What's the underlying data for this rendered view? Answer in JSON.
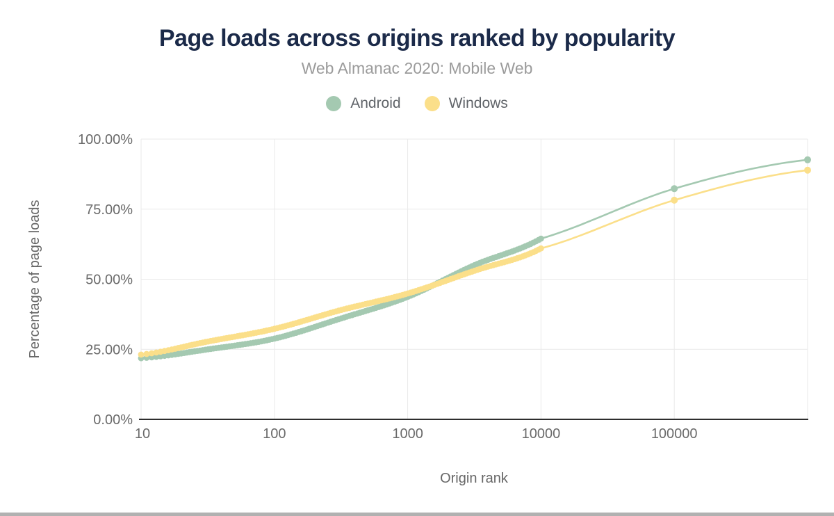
{
  "header": {
    "title": "Page loads across origins ranked by popularity",
    "subtitle": "Web Almanac 2020: Mobile Web"
  },
  "colors": {
    "title": "#1b2a49",
    "subtitle": "#9b9b9b",
    "tick_text": "#6a6a6a",
    "grid": "#e9e9e9",
    "axis_line": "#2d2d2d",
    "android": "#a4c9b1",
    "windows": "#fbdf8a",
    "scrollbar": "#b1b1b1"
  },
  "chart_data": {
    "type": "line",
    "title": "Page loads across origins ranked by popularity",
    "subtitle": "Web Almanac 2020: Mobile Web",
    "xlabel": "Origin rank",
    "ylabel": "Percentage of page loads",
    "x_scale": "log",
    "grid": "both",
    "legend_position": "top",
    "x_ticks": [
      "10",
      "100",
      "1000",
      "10000",
      "100000"
    ],
    "y_ticks": [
      "100.00%",
      "75.00%",
      "50.00%",
      "25.00%",
      "0.00%"
    ],
    "xlim": [
      10,
      1000000
    ],
    "ylim": [
      0,
      100
    ],
    "series": [
      {
        "name": "Android",
        "color": "#a4c9b1",
        "dense_until_rank": 10000,
        "points": [
          [
            10,
            21.8
          ],
          [
            32,
            25.0
          ],
          [
            100,
            28.8
          ],
          [
            316,
            36.0
          ],
          [
            1000,
            43.7
          ],
          [
            3162,
            55.0
          ],
          [
            10000,
            64.5
          ],
          [
            100000,
            82.3
          ],
          [
            1000000,
            92.6
          ]
        ]
      },
      {
        "name": "Windows",
        "color": "#fbdf8a",
        "dense_until_rank": 10000,
        "points": [
          [
            10,
            23.1
          ],
          [
            32,
            27.8
          ],
          [
            100,
            32.3
          ],
          [
            316,
            39.0
          ],
          [
            1000,
            44.9
          ],
          [
            3162,
            53.0
          ],
          [
            10000,
            61.0
          ],
          [
            100000,
            78.2
          ],
          [
            1000000,
            88.9
          ]
        ]
      }
    ]
  }
}
